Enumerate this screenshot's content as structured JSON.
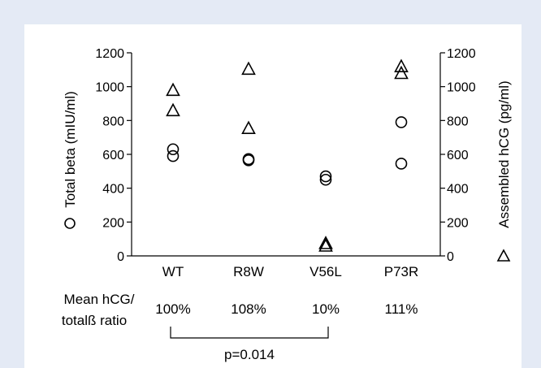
{
  "chart_data": {
    "type": "scatter",
    "categories": [
      "WT",
      "R8W",
      "V56L",
      "P73R"
    ],
    "left_axis": {
      "label": "Total beta (mIU/ml)",
      "marker": "circle",
      "range": [
        0,
        1200
      ],
      "ticks": [
        "0",
        "200",
        "400",
        "600",
        "800",
        "1000",
        "1200"
      ]
    },
    "right_axis": {
      "label": "Assembled hCG (pg/ml)",
      "marker": "triangle",
      "range": [
        0,
        1200
      ],
      "ticks": [
        "0",
        "200",
        "400",
        "600",
        "800",
        "1000",
        "1200"
      ]
    },
    "series": [
      {
        "axis": "left",
        "marker": "circle",
        "points": [
          {
            "category": "WT",
            "values": [
              630,
              590
            ]
          },
          {
            "category": "R8W",
            "values": [
              572,
              565
            ]
          },
          {
            "category": "V56L",
            "values": [
              470,
              450
            ]
          },
          {
            "category": "P73R",
            "values": [
              790,
              545
            ]
          }
        ]
      },
      {
        "axis": "right",
        "marker": "triangle",
        "points": [
          {
            "category": "WT",
            "values": [
              980,
              860
            ]
          },
          {
            "category": "R8W",
            "values": [
              1105,
              755
            ]
          },
          {
            "category": "V56L",
            "values": [
              75,
              60
            ]
          },
          {
            "category": "P73R",
            "values": [
              1120,
              1080
            ]
          }
        ]
      }
    ],
    "ratio_label": [
      "Mean hCG/",
      "totalß ratio"
    ],
    "ratios": [
      "100%",
      "108%",
      "10%",
      "111%"
    ],
    "comparison": {
      "from": "WT",
      "to": "V56L",
      "label": "p=0.014"
    },
    "grid": false,
    "legend": "none"
  }
}
